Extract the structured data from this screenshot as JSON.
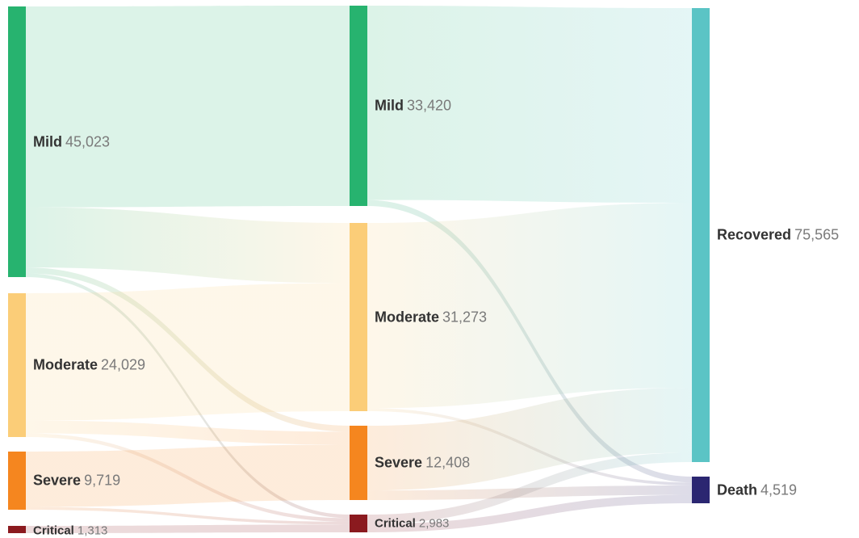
{
  "chart_data": {
    "type": "sankey",
    "stages": [
      [
        {
          "id": "s0-mild",
          "name": "Mild",
          "value": "45,023",
          "color": "#27b36f"
        },
        {
          "id": "s0-moderate",
          "name": "Moderate",
          "value": "24,029",
          "color": "#fbcd78"
        },
        {
          "id": "s0-severe",
          "name": "Severe",
          "value": "9,719",
          "color": "#f5861f"
        },
        {
          "id": "s0-critical",
          "name": "Critical",
          "value": "1,313",
          "color": "#8b1a1f"
        }
      ],
      [
        {
          "id": "s1-mild",
          "name": "Mild",
          "value": "33,420",
          "color": "#27b36f"
        },
        {
          "id": "s1-moderate",
          "name": "Moderate",
          "value": "31,273",
          "color": "#fbcd78"
        },
        {
          "id": "s1-severe",
          "name": "Severe",
          "value": "12,408",
          "color": "#f5861f"
        },
        {
          "id": "s1-critical",
          "name": "Critical",
          "value": "2,983",
          "color": "#8b1a1f"
        }
      ],
      [
        {
          "id": "s2-recovered",
          "name": "Recovered",
          "value": "75,565",
          "color": "#5bc4c5"
        },
        {
          "id": "s2-death",
          "name": "Death",
          "value": "4,519",
          "color": "#2b2671"
        }
      ]
    ],
    "links": [
      {
        "source": "s0-mild",
        "target": "s1-mild",
        "value": 33420
      },
      {
        "source": "s0-mild",
        "target": "s1-moderate",
        "value": 10000
      },
      {
        "source": "s0-mild",
        "target": "s1-severe",
        "value": 1000
      },
      {
        "source": "s0-mild",
        "target": "s1-critical",
        "value": 603
      },
      {
        "source": "s0-moderate",
        "target": "s1-moderate",
        "value": 21273
      },
      {
        "source": "s0-moderate",
        "target": "s1-severe",
        "value": 2156
      },
      {
        "source": "s0-moderate",
        "target": "s1-critical",
        "value": 600
      },
      {
        "source": "s0-severe",
        "target": "s1-severe",
        "value": 9252
      },
      {
        "source": "s0-severe",
        "target": "s1-critical",
        "value": 467
      },
      {
        "source": "s0-critical",
        "target": "s1-critical",
        "value": 1313
      },
      {
        "source": "s1-mild",
        "target": "s2-recovered",
        "value": 32420
      },
      {
        "source": "s1-mild",
        "target": "s2-death",
        "value": 1000
      },
      {
        "source": "s1-moderate",
        "target": "s2-recovered",
        "value": 30773
      },
      {
        "source": "s1-moderate",
        "target": "s2-death",
        "value": 500
      },
      {
        "source": "s1-severe",
        "target": "s2-recovered",
        "value": 10808
      },
      {
        "source": "s1-severe",
        "target": "s2-death",
        "value": 1600
      },
      {
        "source": "s1-critical",
        "target": "s2-recovered",
        "value": 1564
      },
      {
        "source": "s1-critical",
        "target": "s2-death",
        "value": 1419
      }
    ]
  }
}
